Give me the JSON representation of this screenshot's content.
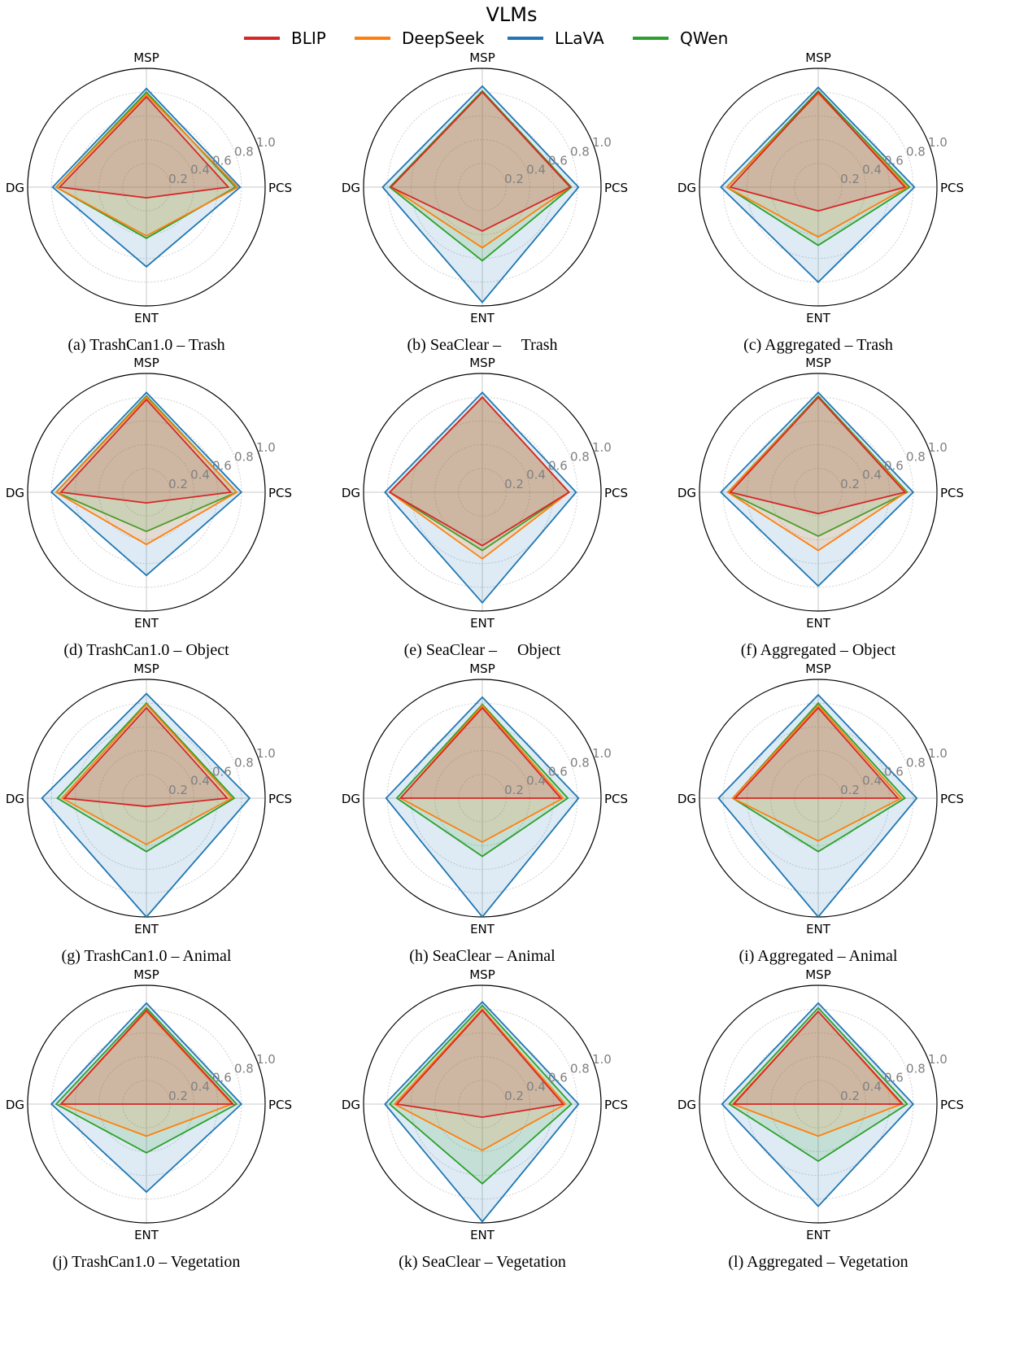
{
  "legend": {
    "title": "VLMs",
    "entries": [
      {
        "name": "BLIP",
        "color": "#d62728"
      },
      {
        "name": "DeepSeek",
        "color": "#ff7f0e"
      },
      {
        "name": "LLaVA",
        "color": "#1f77b4"
      },
      {
        "name": "QWen",
        "color": "#2ca02c"
      }
    ]
  },
  "chart_data": [
    {
      "type": "radar",
      "caption": "(a) TrashCan1.0 – Trash",
      "axes": [
        "MSP",
        "PCS",
        "ENT",
        "DG"
      ],
      "radial_ticks": [
        "0.2",
        "0.4",
        "0.6",
        "0.8",
        "1.0"
      ],
      "rlim": [
        0,
        1
      ],
      "series": [
        {
          "name": "BLIP",
          "values": [
            0.76,
            0.69,
            0.09,
            0.73
          ]
        },
        {
          "name": "DeepSeek",
          "values": [
            0.78,
            0.77,
            0.41,
            0.76
          ]
        },
        {
          "name": "LLaVA",
          "values": [
            0.83,
            0.79,
            0.67,
            0.79
          ]
        },
        {
          "name": "QWen",
          "values": [
            0.8,
            0.75,
            0.43,
            0.76
          ]
        }
      ]
    },
    {
      "type": "radar",
      "caption": "(b) SeaClear –     Trash",
      "axes": [
        "MSP",
        "PCS",
        "ENT",
        "DG"
      ],
      "radial_ticks": [
        "0.2",
        "0.4",
        "0.6",
        "0.8",
        "1.0"
      ],
      "rlim": [
        0,
        1
      ],
      "series": [
        {
          "name": "BLIP",
          "values": [
            0.8,
            0.74,
            0.37,
            0.77
          ]
        },
        {
          "name": "DeepSeek",
          "values": [
            0.8,
            0.74,
            0.51,
            0.77
          ]
        },
        {
          "name": "LLaVA",
          "values": [
            0.85,
            0.81,
            0.97,
            0.84
          ]
        },
        {
          "name": "QWen",
          "values": [
            0.81,
            0.75,
            0.62,
            0.78
          ]
        }
      ]
    },
    {
      "type": "radar",
      "caption": "(c) Aggregated – Trash",
      "axes": [
        "MSP",
        "PCS",
        "ENT",
        "DG"
      ],
      "radial_ticks": [
        "0.2",
        "0.4",
        "0.6",
        "0.8",
        "1.0"
      ],
      "rlim": [
        0,
        1
      ],
      "series": [
        {
          "name": "BLIP",
          "values": [
            0.8,
            0.73,
            0.2,
            0.74
          ]
        },
        {
          "name": "DeepSeek",
          "values": [
            0.79,
            0.75,
            0.42,
            0.77
          ]
        },
        {
          "name": "LLaVA",
          "values": [
            0.84,
            0.81,
            0.8,
            0.82
          ]
        },
        {
          "name": "QWen",
          "values": [
            0.81,
            0.77,
            0.49,
            0.77
          ]
        }
      ]
    },
    {
      "type": "radar",
      "caption": "(d) TrashCan1.0 – Object",
      "axes": [
        "MSP",
        "PCS",
        "ENT",
        "DG"
      ],
      "radial_ticks": [
        "0.2",
        "0.4",
        "0.6",
        "0.8",
        "1.0"
      ],
      "rlim": [
        0,
        1
      ],
      "series": [
        {
          "name": "BLIP",
          "values": [
            0.78,
            0.71,
            0.09,
            0.72
          ]
        },
        {
          "name": "DeepSeek",
          "values": [
            0.8,
            0.76,
            0.44,
            0.76
          ]
        },
        {
          "name": "LLaVA",
          "values": [
            0.84,
            0.8,
            0.7,
            0.8
          ]
        },
        {
          "name": "QWen",
          "values": [
            0.81,
            0.76,
            0.33,
            0.76
          ]
        }
      ]
    },
    {
      "type": "radar",
      "caption": "(e) SeaClear –     Object",
      "axes": [
        "MSP",
        "PCS",
        "ENT",
        "DG"
      ],
      "radial_ticks": [
        "0.2",
        "0.4",
        "0.6",
        "0.8",
        "1.0"
      ],
      "rlim": [
        0,
        1
      ],
      "series": [
        {
          "name": "BLIP",
          "values": [
            0.8,
            0.73,
            0.45,
            0.78
          ]
        },
        {
          "name": "DeepSeek",
          "values": [
            0.8,
            0.73,
            0.56,
            0.78
          ]
        },
        {
          "name": "LLaVA",
          "values": [
            0.84,
            0.79,
            0.93,
            0.82
          ]
        },
        {
          "name": "QWen",
          "values": [
            0.8,
            0.73,
            0.49,
            0.78
          ]
        }
      ]
    },
    {
      "type": "radar",
      "caption": "(f) Aggregated – Object",
      "axes": [
        "MSP",
        "PCS",
        "ENT",
        "DG"
      ],
      "radial_ticks": [
        "0.2",
        "0.4",
        "0.6",
        "0.8",
        "1.0"
      ],
      "rlim": [
        0,
        1
      ],
      "series": [
        {
          "name": "BLIP",
          "values": [
            0.8,
            0.73,
            0.18,
            0.74
          ]
        },
        {
          "name": "DeepSeek",
          "values": [
            0.8,
            0.74,
            0.49,
            0.76
          ]
        },
        {
          "name": "LLaVA",
          "values": [
            0.84,
            0.8,
            0.79,
            0.82
          ]
        },
        {
          "name": "QWen",
          "values": [
            0.81,
            0.75,
            0.37,
            0.76
          ]
        }
      ]
    },
    {
      "type": "radar",
      "caption": "(g) TrashCan1.0 – Animal",
      "axes": [
        "MSP",
        "PCS",
        "ENT",
        "DG"
      ],
      "radial_ticks": [
        "0.2",
        "0.4",
        "0.6",
        "0.8",
        "1.0"
      ],
      "rlim": [
        0,
        1
      ],
      "series": [
        {
          "name": "BLIP",
          "values": [
            0.76,
            0.68,
            0.07,
            0.69
          ]
        },
        {
          "name": "DeepSeek",
          "values": [
            0.79,
            0.72,
            0.39,
            0.71
          ]
        },
        {
          "name": "LLaVA",
          "values": [
            0.88,
            0.87,
            1.0,
            0.88
          ]
        },
        {
          "name": "QWen",
          "values": [
            0.8,
            0.74,
            0.45,
            0.75
          ]
        }
      ]
    },
    {
      "type": "radar",
      "caption": "(h) SeaClear – Animal",
      "axes": [
        "MSP",
        "PCS",
        "ENT",
        "DG"
      ],
      "radial_ticks": [
        "0.2",
        "0.4",
        "0.6",
        "0.8",
        "1.0"
      ],
      "rlim": [
        0,
        1
      ],
      "series": [
        {
          "name": "BLIP",
          "values": [
            0.76,
            0.66,
            0.0,
            0.69
          ]
        },
        {
          "name": "DeepSeek",
          "values": [
            0.78,
            0.68,
            0.37,
            0.69
          ]
        },
        {
          "name": "LLaVA",
          "values": [
            0.85,
            0.81,
            1.0,
            0.81
          ]
        },
        {
          "name": "QWen",
          "values": [
            0.79,
            0.72,
            0.49,
            0.72
          ]
        }
      ]
    },
    {
      "type": "radar",
      "caption": "(i) Aggregated – Animal",
      "axes": [
        "MSP",
        "PCS",
        "ENT",
        "DG"
      ],
      "radial_ticks": [
        "0.2",
        "0.4",
        "0.6",
        "0.8",
        "1.0"
      ],
      "rlim": [
        0,
        1
      ],
      "series": [
        {
          "name": "BLIP",
          "values": [
            0.76,
            0.67,
            0.0,
            0.7
          ]
        },
        {
          "name": "DeepSeek",
          "values": [
            0.78,
            0.7,
            0.36,
            0.72
          ]
        },
        {
          "name": "LLaVA",
          "values": [
            0.87,
            0.83,
            1.0,
            0.84
          ]
        },
        {
          "name": "QWen",
          "values": [
            0.8,
            0.73,
            0.45,
            0.72
          ]
        }
      ]
    },
    {
      "type": "radar",
      "caption": "(j) TrashCan1.0 – Vegetation",
      "axes": [
        "MSP",
        "PCS",
        "ENT",
        "DG"
      ],
      "radial_ticks": [
        "0.2",
        "0.4",
        "0.6",
        "0.8",
        "1.0"
      ],
      "rlim": [
        0,
        1
      ],
      "series": [
        {
          "name": "BLIP",
          "values": [
            0.79,
            0.73,
            0.0,
            0.72
          ]
        },
        {
          "name": "DeepSeek",
          "values": [
            0.78,
            0.72,
            0.27,
            0.72
          ]
        },
        {
          "name": "LLaVA",
          "values": [
            0.85,
            0.8,
            0.74,
            0.8
          ]
        },
        {
          "name": "QWen",
          "values": [
            0.81,
            0.76,
            0.41,
            0.76
          ]
        }
      ]
    },
    {
      "type": "radar",
      "caption": "(k) SeaClear – Vegetation",
      "axes": [
        "MSP",
        "PCS",
        "ENT",
        "DG"
      ],
      "radial_ticks": [
        "0.2",
        "0.4",
        "0.6",
        "0.8",
        "1.0"
      ],
      "rlim": [
        0,
        1
      ],
      "series": [
        {
          "name": "BLIP",
          "values": [
            0.79,
            0.68,
            0.11,
            0.72
          ]
        },
        {
          "name": "DeepSeek",
          "values": [
            0.8,
            0.7,
            0.39,
            0.74
          ]
        },
        {
          "name": "LLaVA",
          "values": [
            0.86,
            0.81,
            0.99,
            0.82
          ]
        },
        {
          "name": "QWen",
          "values": [
            0.83,
            0.75,
            0.67,
            0.78
          ]
        }
      ]
    },
    {
      "type": "radar",
      "caption": "(l) Aggregated – Vegetation",
      "axes": [
        "MSP",
        "PCS",
        "ENT",
        "DG"
      ],
      "radial_ticks": [
        "0.2",
        "0.4",
        "0.6",
        "0.8",
        "1.0"
      ],
      "rlim": [
        0,
        1
      ],
      "series": [
        {
          "name": "BLIP",
          "values": [
            0.78,
            0.71,
            0.0,
            0.71
          ]
        },
        {
          "name": "DeepSeek",
          "values": [
            0.78,
            0.7,
            0.27,
            0.72
          ]
        },
        {
          "name": "LLaVA",
          "values": [
            0.85,
            0.8,
            0.86,
            0.81
          ]
        },
        {
          "name": "QWen",
          "values": [
            0.81,
            0.75,
            0.48,
            0.75
          ]
        }
      ]
    }
  ]
}
